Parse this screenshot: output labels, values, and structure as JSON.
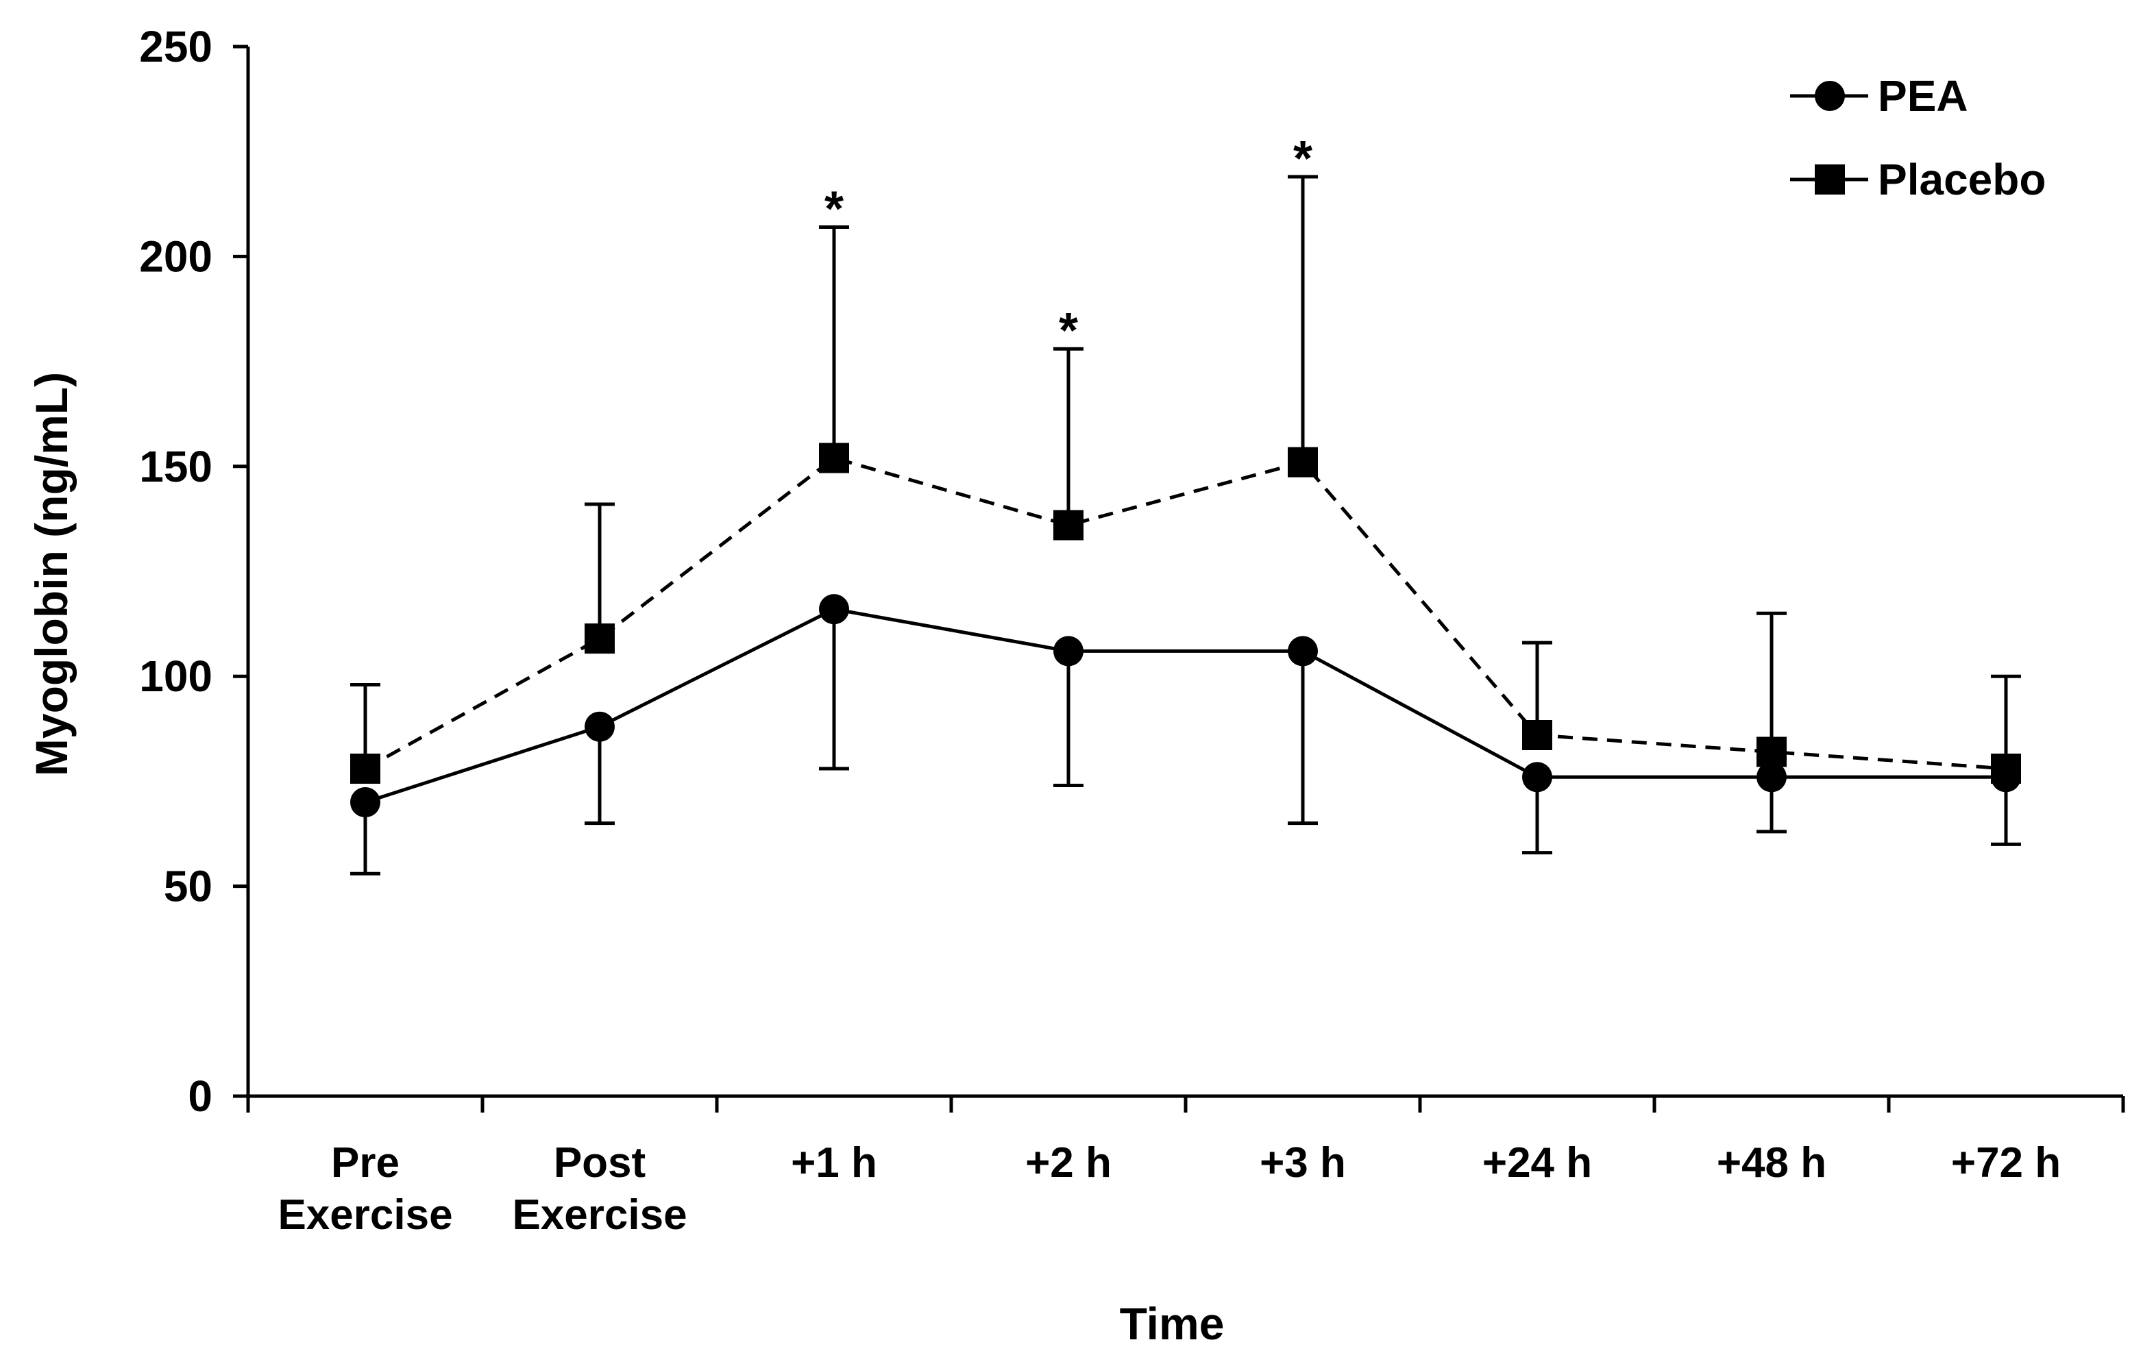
{
  "chart_data": {
    "type": "line",
    "xlabel": "Time",
    "ylabel": "Myoglobin (ng/mL)",
    "ylim": [
      0,
      250
    ],
    "yticks": [
      0,
      50,
      100,
      150,
      200,
      250
    ],
    "categories": [
      [
        "Pre",
        "Exercise"
      ],
      [
        "Post",
        "Exercise"
      ],
      [
        "+1 h"
      ],
      [
        "+2 h"
      ],
      [
        "+3 h"
      ],
      [
        "+24 h"
      ],
      [
        "+48 h"
      ],
      [
        "+72 h"
      ]
    ],
    "legend_position": "top-right",
    "series": [
      {
        "name": "PEA",
        "marker": "circle",
        "line_style": "solid",
        "values": [
          70,
          88,
          116,
          106,
          106,
          76,
          76,
          76
        ],
        "error_lower": [
          53,
          65,
          78,
          74,
          65,
          58,
          63,
          60
        ]
      },
      {
        "name": "Placebo",
        "marker": "square",
        "line_style": "dashed",
        "values": [
          78,
          109,
          152,
          136,
          151,
          86,
          82,
          78
        ],
        "error_upper": [
          98,
          141,
          207,
          178,
          219,
          108,
          115,
          100
        ]
      }
    ],
    "annotations": [
      {
        "category_index": 2,
        "text": "*",
        "y": 207
      },
      {
        "category_index": 3,
        "text": "*",
        "y": 178
      },
      {
        "category_index": 4,
        "text": "*",
        "y": 219
      }
    ],
    "color": "#000000"
  }
}
